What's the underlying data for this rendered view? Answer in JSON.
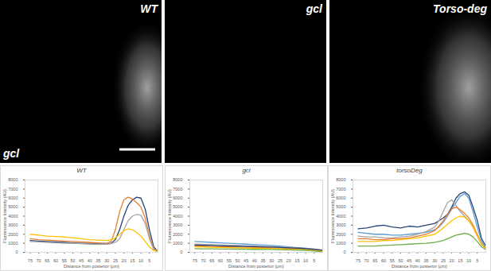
{
  "images": [
    {
      "label": "WT",
      "corner_label": "gcl"
    },
    {
      "label": "gcl"
    },
    {
      "label": "Torso-deg"
    }
  ],
  "chart_data": [
    {
      "type": "line",
      "title": "WT",
      "x_label": "Distance from posterior (μm)",
      "y_label": "Fluorescence Intensity (AU)",
      "x": [
        75,
        70,
        65,
        60,
        55,
        50,
        45,
        40,
        35,
        30,
        27.5,
        25,
        22.5,
        20,
        17.5,
        15,
        12.5,
        10,
        7.5,
        5,
        2.5,
        0
      ],
      "xlim": [
        78,
        0
      ],
      "xticks": [
        75,
        70,
        65,
        60,
        55,
        50,
        45,
        40,
        35,
        30,
        25,
        20,
        15,
        10,
        5
      ],
      "ylim": [
        0,
        8000
      ],
      "yticks": [
        0,
        1000,
        2000,
        3000,
        4000,
        5000,
        6000,
        7000,
        8000
      ],
      "grid": false,
      "series": [
        {
          "color": "#264478",
          "values": [
            1300,
            1250,
            1200,
            1150,
            1100,
            1050,
            1000,
            1000,
            950,
            950,
            1000,
            1400,
            2500,
            4000,
            5200,
            5800,
            6100,
            6000,
            4800,
            2500,
            600,
            100
          ]
        },
        {
          "color": "#ed7d31",
          "values": [
            1500,
            1400,
            1350,
            1300,
            1250,
            1200,
            1150,
            1100,
            1050,
            1000,
            1200,
            2500,
            4500,
            5800,
            6100,
            5900,
            5500,
            5000,
            3800,
            1800,
            400,
            100
          ]
        },
        {
          "color": "#a5a5a5",
          "values": [
            1200,
            1150,
            1100,
            1050,
            1000,
            1000,
            950,
            900,
            900,
            900,
            950,
            1100,
            1500,
            2500,
            3500,
            4000,
            4200,
            4100,
            3200,
            1500,
            300,
            50
          ]
        },
        {
          "color": "#ffc000",
          "values": [
            2000,
            1900,
            1800,
            1750,
            1700,
            1600,
            1500,
            1400,
            1350,
            1300,
            1400,
            1600,
            2000,
            2400,
            2600,
            2500,
            2200,
            1800,
            1200,
            600,
            200,
            50
          ]
        }
      ]
    },
    {
      "type": "line",
      "title": "gcl",
      "x_label": "Distance from posterior (μm)",
      "y_label": "Fluorescence Intensity (AU)",
      "x": [
        75,
        70,
        65,
        60,
        55,
        50,
        45,
        40,
        35,
        30,
        27.5,
        25,
        22.5,
        20,
        17.5,
        15,
        12.5,
        10,
        7.5,
        5,
        2.5,
        0
      ],
      "xlim": [
        78,
        0
      ],
      "xticks": [
        75,
        70,
        65,
        60,
        55,
        50,
        45,
        40,
        35,
        30,
        25,
        20,
        15,
        10,
        5
      ],
      "ylim": [
        0,
        8000
      ],
      "yticks": [
        0,
        1000,
        2000,
        3000,
        4000,
        5000,
        6000,
        7000,
        8000
      ],
      "grid": false,
      "series": [
        {
          "color": "#5b9bd5",
          "values": [
            1200,
            1150,
            1100,
            1050,
            1000,
            950,
            900,
            850,
            800,
            750,
            720,
            700,
            650,
            600,
            560,
            520,
            480,
            440,
            400,
            350,
            300,
            250
          ]
        },
        {
          "color": "#a5a5a5",
          "values": [
            900,
            880,
            850,
            820,
            780,
            750,
            720,
            680,
            650,
            620,
            600,
            580,
            560,
            540,
            520,
            500,
            470,
            440,
            400,
            350,
            300,
            250
          ]
        },
        {
          "color": "#ed7d31",
          "values": [
            700,
            680,
            650,
            620,
            600,
            580,
            560,
            540,
            520,
            500,
            480,
            470,
            460,
            440,
            420,
            400,
            380,
            350,
            320,
            280,
            240,
            200
          ]
        },
        {
          "color": "#ffc000",
          "values": [
            600,
            580,
            560,
            540,
            520,
            500,
            480,
            460,
            440,
            420,
            410,
            400,
            390,
            380,
            370,
            350,
            330,
            300,
            270,
            230,
            190,
            150
          ]
        },
        {
          "color": "#70ad47",
          "values": [
            400,
            390,
            380,
            370,
            360,
            350,
            340,
            330,
            320,
            310,
            300,
            290,
            280,
            270,
            260,
            250,
            230,
            210,
            180,
            150,
            100,
            50
          ]
        },
        {
          "color": "#264478",
          "values": [
            800,
            780,
            750,
            720,
            700,
            680,
            650,
            620,
            600,
            580,
            560,
            540,
            520,
            500,
            480,
            460,
            440,
            400,
            360,
            320,
            280,
            220
          ]
        }
      ]
    },
    {
      "type": "line",
      "title": "torsoDeg",
      "x_label": "Distance from posterior (μm)",
      "y_label": "Fluorescence Intensity (AU)",
      "x": [
        75,
        70,
        65,
        60,
        55,
        50,
        45,
        40,
        35,
        30,
        27.5,
        25,
        22.5,
        20,
        17.5,
        15,
        12.5,
        10,
        7.5,
        5,
        2.5,
        0
      ],
      "xlim": [
        78,
        0
      ],
      "xticks": [
        75,
        70,
        65,
        60,
        55,
        50,
        45,
        40,
        35,
        30,
        25,
        20,
        15,
        10,
        5
      ],
      "ylim": [
        0,
        8000
      ],
      "yticks": [
        0,
        1000,
        2000,
        3000,
        4000,
        5000,
        6000,
        7000,
        8000
      ],
      "grid": false,
      "series": [
        {
          "color": "#264478",
          "values": [
            2600,
            2700,
            2900,
            3000,
            2800,
            2700,
            2900,
            2800,
            3000,
            3200,
            3500,
            3800,
            4200,
            5000,
            6000,
            6500,
            6700,
            6300,
            5000,
            3500,
            1500,
            700
          ]
        },
        {
          "color": "#5b9bd5",
          "values": [
            2200,
            2100,
            2000,
            2000,
            1900,
            1900,
            2000,
            2100,
            2200,
            2500,
            2800,
            3300,
            4000,
            4800,
            5500,
            6200,
            6500,
            6000,
            4500,
            2800,
            1200,
            500
          ]
        },
        {
          "color": "#a5a5a5",
          "values": [
            1800,
            1700,
            1700,
            1600,
            1600,
            1700,
            1800,
            2000,
            2300,
            2800,
            3500,
            4500,
            5500,
            5800,
            5200,
            4500,
            4000,
            3500,
            2800,
            1800,
            900,
            400
          ]
        },
        {
          "color": "#ed7d31",
          "values": [
            1500,
            1500,
            1400,
            1400,
            1500,
            1500,
            1600,
            1800,
            2000,
            2400,
            2900,
            3500,
            4200,
            4800,
            5000,
            4700,
            4300,
            3800,
            3000,
            2000,
            900,
            400
          ]
        },
        {
          "color": "#ffc000",
          "values": [
            1200,
            1200,
            1200,
            1300,
            1300,
            1400,
            1500,
            1600,
            1800,
            2000,
            2300,
            2700,
            3100,
            3500,
            3800,
            4000,
            3900,
            3500,
            2800,
            1800,
            900,
            400
          ]
        },
        {
          "color": "#70ad47",
          "values": [
            700,
            700,
            700,
            750,
            800,
            850,
            900,
            950,
            1000,
            1100,
            1200,
            1300,
            1500,
            1700,
            1900,
            2000,
            2100,
            2000,
            1700,
            1200,
            600,
            300
          ]
        }
      ]
    }
  ]
}
